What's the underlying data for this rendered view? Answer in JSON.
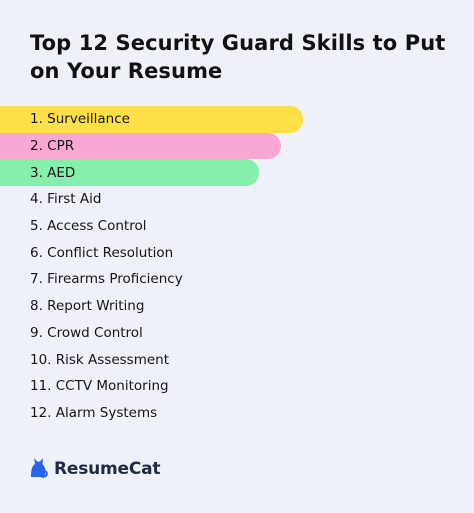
{
  "title": "Top 12 Security Guard Skills to Put on Your Resume",
  "skills": [
    {
      "label": "1. Surveillance",
      "highlight": "#fde047"
    },
    {
      "label": "2. CPR",
      "highlight": "#f9a8d4"
    },
    {
      "label": "3. AED",
      "highlight": "#86efac"
    },
    {
      "label": "4. First Aid"
    },
    {
      "label": "5. Access Control"
    },
    {
      "label": "6. Conflict Resolution"
    },
    {
      "label": "7. Firearms Proficiency"
    },
    {
      "label": "8. Report Writing"
    },
    {
      "label": "9. Crowd Control"
    },
    {
      "label": "10. Risk Assessment"
    },
    {
      "label": "11. CCTV Monitoring"
    },
    {
      "label": "12. Alarm Systems"
    }
  ],
  "brand": {
    "name": "ResumeCat",
    "icon": "cat-icon",
    "color": "#2563eb"
  }
}
